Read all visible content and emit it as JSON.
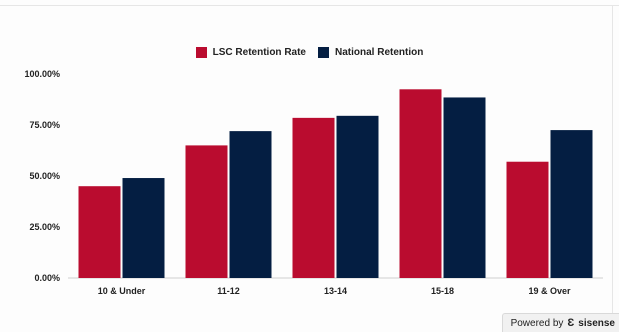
{
  "legend": {
    "items": [
      {
        "label": "LSC Retention Rate",
        "color": "#ba0c2f"
      },
      {
        "label": "National Retention",
        "color": "#041e42"
      }
    ]
  },
  "footer": {
    "powered_label": "Powered by",
    "brand": "sisense",
    "icon": "sisense-logo-icon"
  },
  "chart_data": {
    "type": "bar",
    "title": "",
    "xlabel": "",
    "ylabel": "",
    "categories": [
      "10 & Under",
      "11-12",
      "13-14",
      "15-18",
      "19 & Over"
    ],
    "series": [
      {
        "name": "LSC Retention Rate",
        "color": "#ba0c2f",
        "values": [
          45,
          65,
          78.5,
          92.5,
          57
        ]
      },
      {
        "name": "National Retention",
        "color": "#041e42",
        "values": [
          49,
          72,
          79.5,
          88.5,
          72.5
        ]
      }
    ],
    "ylim": [
      0,
      100
    ],
    "yticks": [
      0,
      25,
      50,
      75,
      100
    ],
    "ytick_labels": [
      "0.00%",
      "25.00%",
      "50.00%",
      "75.00%",
      "100.00%"
    ],
    "grid": false,
    "legend_position": "top-center"
  }
}
